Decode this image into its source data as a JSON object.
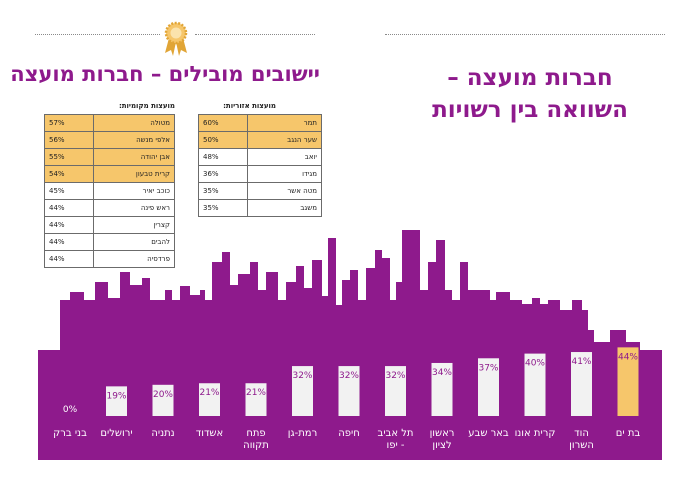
{
  "headline_right_line1": "חברות מועצה –",
  "headline_right_line2": "השוואה בין רשויות",
  "headline_left": "יישובים מובילים – חברות מועצה",
  "regional_table": {
    "label": "מועצות אזוריות:",
    "rows": [
      {
        "name": "תמר",
        "value": "60%",
        "highlight": true
      },
      {
        "name": "שער הנגב",
        "value": "50%",
        "highlight": true
      },
      {
        "name": "יואב",
        "value": "48%",
        "highlight": false
      },
      {
        "name": "מגידו",
        "value": "36%",
        "highlight": false
      },
      {
        "name": "מטה אשר",
        "value": "35%",
        "highlight": false
      },
      {
        "name": "משגב",
        "value": "35%",
        "highlight": false
      }
    ]
  },
  "local_table": {
    "label": "מועצות מקומיות:",
    "rows": [
      {
        "name": "מטולה",
        "value": "57%",
        "highlight": true
      },
      {
        "name": "אלפי מנשה",
        "value": "56%",
        "highlight": true
      },
      {
        "name": "אבן יהודה",
        "value": "55%",
        "highlight": true
      },
      {
        "name": "קרית טבעון",
        "value": "54%",
        "highlight": true
      },
      {
        "name": "כוכב יאיר",
        "value": "45%",
        "highlight": false
      },
      {
        "name": "ראש פינה",
        "value": "44%",
        "highlight": false
      },
      {
        "name": "קצרין",
        "value": "44%",
        "highlight": false
      },
      {
        "name": "להבים",
        "value": "44%",
        "highlight": false
      },
      {
        "name": "פרדסיה",
        "value": "44%",
        "highlight": false
      }
    ]
  },
  "colors": {
    "purple": "#8e1a8c",
    "gold": "#f6c66b",
    "bar": "#f2f2f2",
    "bar_highlight": "#f6c66b"
  },
  "chart_data": {
    "type": "bar",
    "categories": [
      [
        "בני ברק"
      ],
      [
        "ירושלים"
      ],
      [
        "נתניה"
      ],
      [
        "אשדוד"
      ],
      [
        "פתח",
        "תקווה"
      ],
      [
        "רמת-גן"
      ],
      [
        "חיפה"
      ],
      [
        "תל אביב",
        "- יפו"
      ],
      [
        "ראשון",
        "לציון"
      ],
      [
        "באר שבע"
      ],
      [
        "קרית אונו"
      ],
      [
        "הוד",
        "השרון"
      ],
      [
        "בת ים"
      ]
    ],
    "values": [
      0,
      19,
      20,
      21,
      21,
      32,
      32,
      32,
      34,
      37,
      40,
      41,
      44
    ],
    "data_labels": [
      "0%",
      "19%",
      "20%",
      "21%",
      "21%",
      "32%",
      "32%",
      "32%",
      "34%",
      "37%",
      "40%",
      "41%",
      "44%"
    ],
    "highlight_index": 12,
    "ylim": [
      0,
      50
    ]
  }
}
